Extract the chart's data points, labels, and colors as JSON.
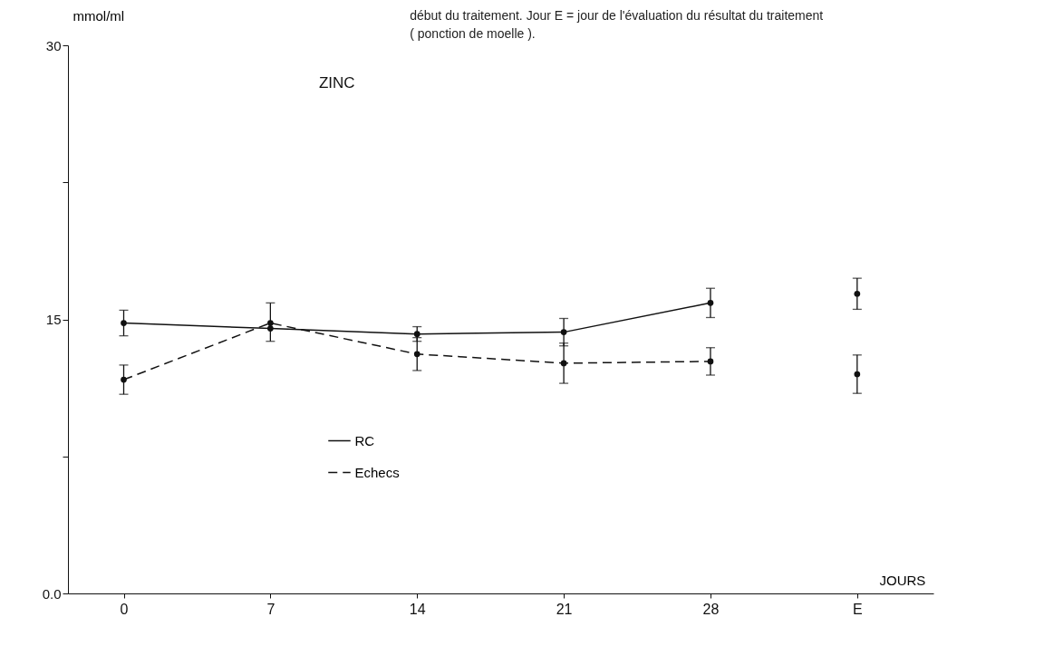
{
  "chart_data": {
    "type": "line",
    "title": "ZINC",
    "ylabel": "mmol/ml",
    "xlabel": "JOURS",
    "annotations": [
      "début du traitement. Jour E = jour de l'évaluation du résultat du traitement",
      "( ponction de moelle )."
    ],
    "categories": [
      "0",
      "7",
      "14",
      "21",
      "28",
      "E"
    ],
    "ylim": [
      0,
      30
    ],
    "yticks": [
      {
        "value": 0,
        "label": "0.0"
      },
      {
        "value": 7.5,
        "label": null
      },
      15,
      {
        "value": 22.5,
        "label": null
      },
      30
    ],
    "marker": "circle",
    "legend": "bottom left",
    "series": [
      {
        "name": "RC",
        "color": "#111111",
        "line_style": "solid",
        "values": [
          14.8,
          14.5,
          14.2,
          14.3,
          15.9,
          null
        ],
        "errors": [
          0.7,
          [
            13.8,
            15.9
          ],
          0.4,
          0.75,
          0.8,
          null
        ]
      },
      {
        "name": "Echecs",
        "color": "#111111",
        "line_style": "dashed",
        "values": [
          11.7,
          14.8,
          13.1,
          12.6,
          12.7,
          null
        ],
        "errors": [
          0.8,
          null,
          0.9,
          1.1,
          0.75,
          null
        ]
      },
      {
        "type": "scatter",
        "color": "#111111",
        "values": [
          null,
          null,
          null,
          null,
          null,
          16.4
        ],
        "errors": [
          null,
          null,
          null,
          null,
          null,
          0.85
        ]
      },
      {
        "type": "scatter",
        "color": "#111111",
        "values": [
          null,
          null,
          null,
          null,
          null,
          12.0
        ],
        "errors": [
          null,
          null,
          null,
          null,
          null,
          1.05
        ]
      }
    ]
  }
}
